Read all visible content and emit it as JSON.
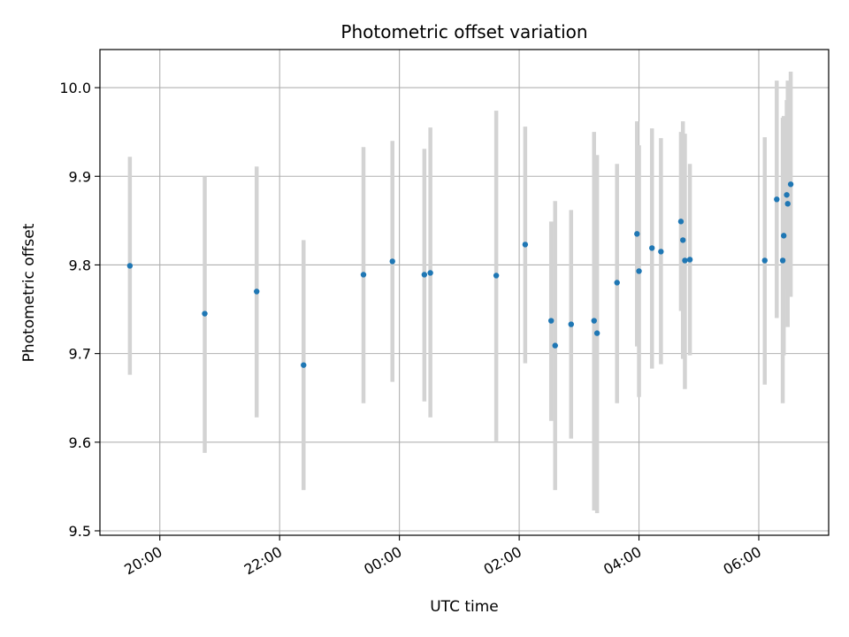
{
  "chart_data": {
    "type": "scatter",
    "title": "Photometric offset variation",
    "xlabel": "UTC time",
    "ylabel": "Photometric offset",
    "x_unit": "hours (UTC clock, continuing past midnight)",
    "xlim": [
      "19:00",
      "07:10"
    ],
    "ylim": [
      9.495,
      10.043
    ],
    "x_ticks": [
      {
        "label": "20:00",
        "t": "20:00"
      },
      {
        "label": "22:00",
        "t": "22:00"
      },
      {
        "label": "00:00",
        "t": "00:00"
      },
      {
        "label": "02:00",
        "t": "02:00"
      },
      {
        "label": "04:00",
        "t": "04:00"
      },
      {
        "label": "06:00",
        "t": "06:00"
      }
    ],
    "y_ticks": [
      {
        "label": "9.5",
        "v": 9.5
      },
      {
        "label": "9.6",
        "v": 9.6
      },
      {
        "label": "9.7",
        "v": 9.7
      },
      {
        "label": "9.8",
        "v": 9.8
      },
      {
        "label": "9.9",
        "v": 9.9
      },
      {
        "label": "10.0",
        "v": 10.0
      }
    ],
    "grid": true,
    "marker_color": "#1f77b4",
    "errorbar_color": "#d3d3d3",
    "points": [
      {
        "t": "19:30",
        "y": 9.799,
        "lo": 9.676,
        "hi": 9.922
      },
      {
        "t": "20:45",
        "y": 9.745,
        "lo": 9.588,
        "hi": 9.9
      },
      {
        "t": "21:37",
        "y": 9.77,
        "lo": 9.628,
        "hi": 9.911
      },
      {
        "t": "22:24",
        "y": 9.687,
        "lo": 9.546,
        "hi": 9.828
      },
      {
        "t": "23:24",
        "y": 9.789,
        "lo": 9.644,
        "hi": 9.933
      },
      {
        "t": "23:53",
        "y": 9.804,
        "lo": 9.668,
        "hi": 9.94
      },
      {
        "t": "00:25",
        "y": 9.789,
        "lo": 9.646,
        "hi": 9.931
      },
      {
        "t": "00:31",
        "y": 9.791,
        "lo": 9.628,
        "hi": 9.955
      },
      {
        "t": "01:37",
        "y": 9.788,
        "lo": 9.601,
        "hi": 9.974
      },
      {
        "t": "02:06",
        "y": 9.823,
        "lo": 9.689,
        "hi": 9.956
      },
      {
        "t": "02:32",
        "y": 9.737,
        "lo": 9.624,
        "hi": 9.849
      },
      {
        "t": "02:36",
        "y": 9.709,
        "lo": 9.546,
        "hi": 9.872
      },
      {
        "t": "02:52",
        "y": 9.733,
        "lo": 9.604,
        "hi": 9.862
      },
      {
        "t": "03:15",
        "y": 9.737,
        "lo": 9.523,
        "hi": 9.95
      },
      {
        "t": "03:18",
        "y": 9.723,
        "lo": 9.52,
        "hi": 9.924
      },
      {
        "t": "03:38",
        "y": 9.78,
        "lo": 9.644,
        "hi": 9.914
      },
      {
        "t": "03:58",
        "y": 9.835,
        "lo": 9.708,
        "hi": 9.962
      },
      {
        "t": "04:00",
        "y": 9.793,
        "lo": 9.651,
        "hi": 9.935
      },
      {
        "t": "04:13",
        "y": 9.819,
        "lo": 9.683,
        "hi": 9.954
      },
      {
        "t": "04:22",
        "y": 9.815,
        "lo": 9.688,
        "hi": 9.943
      },
      {
        "t": "04:42",
        "y": 9.849,
        "lo": 9.748,
        "hi": 9.95
      },
      {
        "t": "04:44",
        "y": 9.828,
        "lo": 9.694,
        "hi": 9.962
      },
      {
        "t": "04:46",
        "y": 9.805,
        "lo": 9.66,
        "hi": 9.948
      },
      {
        "t": "04:51",
        "y": 9.806,
        "lo": 9.698,
        "hi": 9.914
      },
      {
        "t": "06:06",
        "y": 9.805,
        "lo": 9.665,
        "hi": 9.944
      },
      {
        "t": "06:18",
        "y": 9.874,
        "lo": 9.74,
        "hi": 10.008
      },
      {
        "t": "06:24",
        "y": 9.805,
        "lo": 9.644,
        "hi": 9.966
      },
      {
        "t": "06:25",
        "y": 9.833,
        "lo": 9.698,
        "hi": 9.968
      },
      {
        "t": "06:28",
        "y": 9.879,
        "lo": 9.772,
        "hi": 9.986
      },
      {
        "t": "06:29",
        "y": 9.869,
        "lo": 9.73,
        "hi": 10.008
      },
      {
        "t": "06:32",
        "y": 9.891,
        "lo": 9.764,
        "hi": 10.018
      }
    ]
  }
}
